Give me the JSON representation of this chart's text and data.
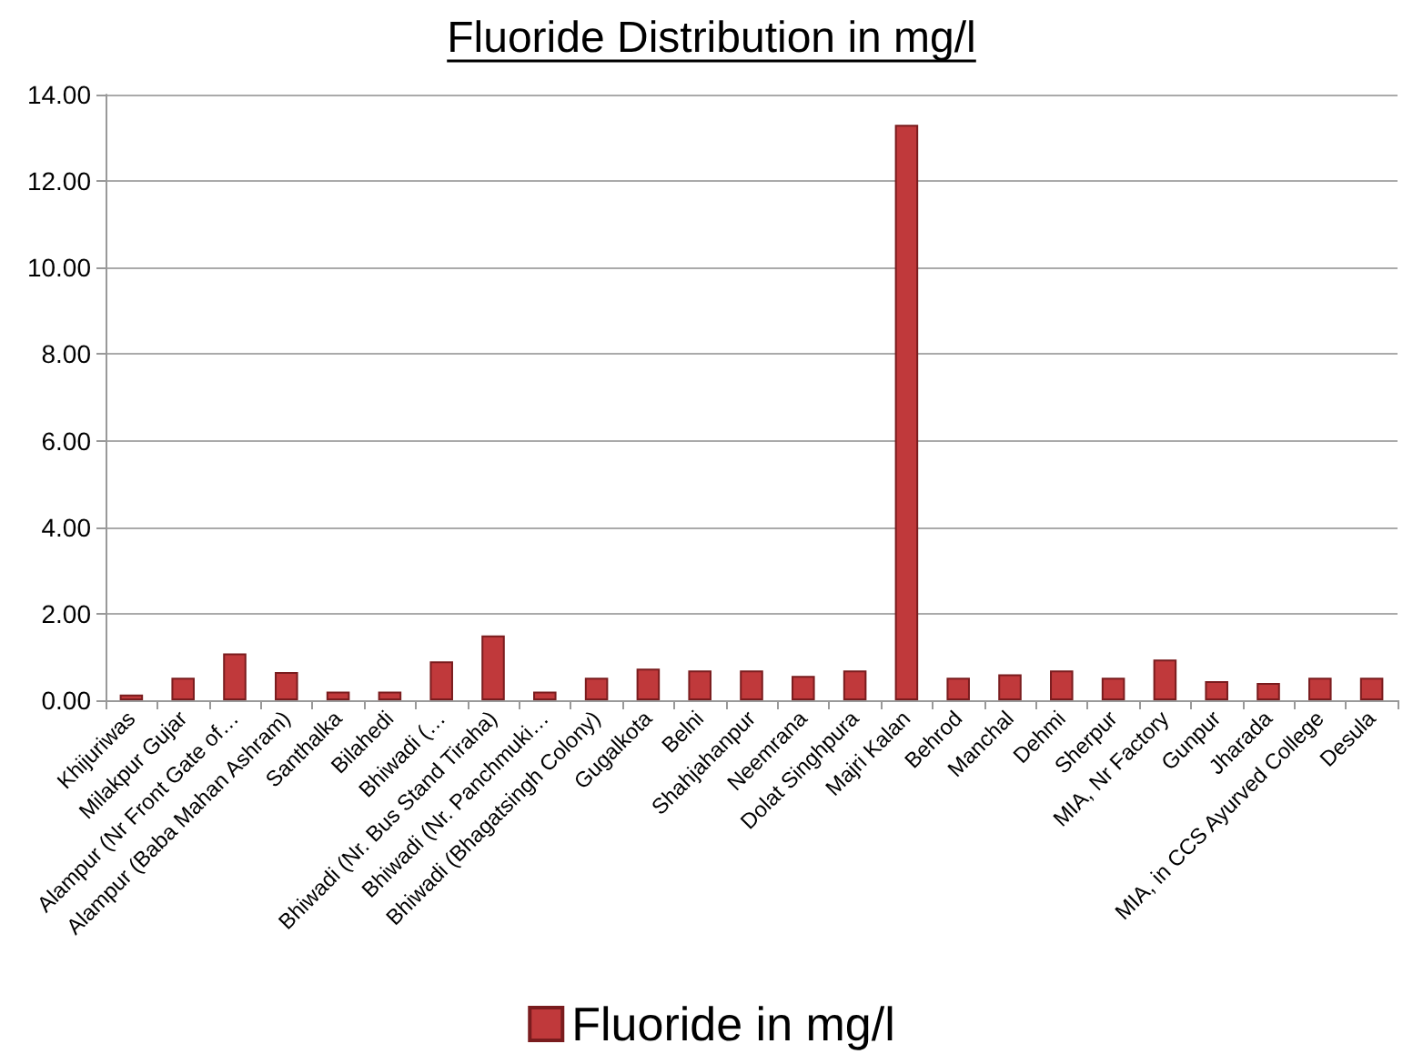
{
  "chart_data": {
    "type": "bar",
    "title": "Fluoride Distribution in mg/l",
    "categories": [
      "Khijuriwas",
      "Milakpur Gujar",
      "Alampur (Nr Front Gate of…",
      "Alampur (Baba Mahan Ashram)",
      "Santhalka",
      "Bilahedi",
      "Bhiwadi (…",
      "Bhiwadi (Nr. Bus Stand Tiraha)",
      "Bhiwadi (Nr. Panchmuki…",
      "Bhiwadi (Bhagatsingh Colony)",
      "Gugalkota",
      "Belni",
      "Shahjahanpur",
      "Neemrana",
      "Dolat Singhpura",
      "Majri Kalan",
      "Behrod",
      "Manchal",
      "Dehmi",
      "Sherpur",
      "MIA, Nr Factory",
      "Gunpur",
      "Jharada",
      "MIA, in CCS Ayurved College",
      "Desula"
    ],
    "series": [
      {
        "name": "Fluoride in mg/l",
        "color": "#c0393b",
        "values": [
          0.13,
          0.52,
          1.08,
          0.65,
          0.2,
          0.2,
          0.9,
          1.5,
          0.2,
          0.52,
          0.73,
          0.69,
          0.69,
          0.56,
          0.69,
          13.3,
          0.52,
          0.6,
          0.69,
          0.52,
          0.94,
          0.44,
          0.4,
          0.52,
          0.52
        ]
      }
    ],
    "ylim": [
      0,
      14
    ],
    "yticks": [
      {
        "value": 0,
        "label": "0.00"
      },
      {
        "value": 2,
        "label": "2.00"
      },
      {
        "value": 4,
        "label": "4.00"
      },
      {
        "value": 6,
        "label": "6.00"
      },
      {
        "value": 8,
        "label": "8.00"
      },
      {
        "value": 10,
        "label": "10.00"
      },
      {
        "value": 12,
        "label": "12.00"
      },
      {
        "value": 14,
        "label": "14.00"
      }
    ],
    "grid": true,
    "legend": "bottom"
  }
}
